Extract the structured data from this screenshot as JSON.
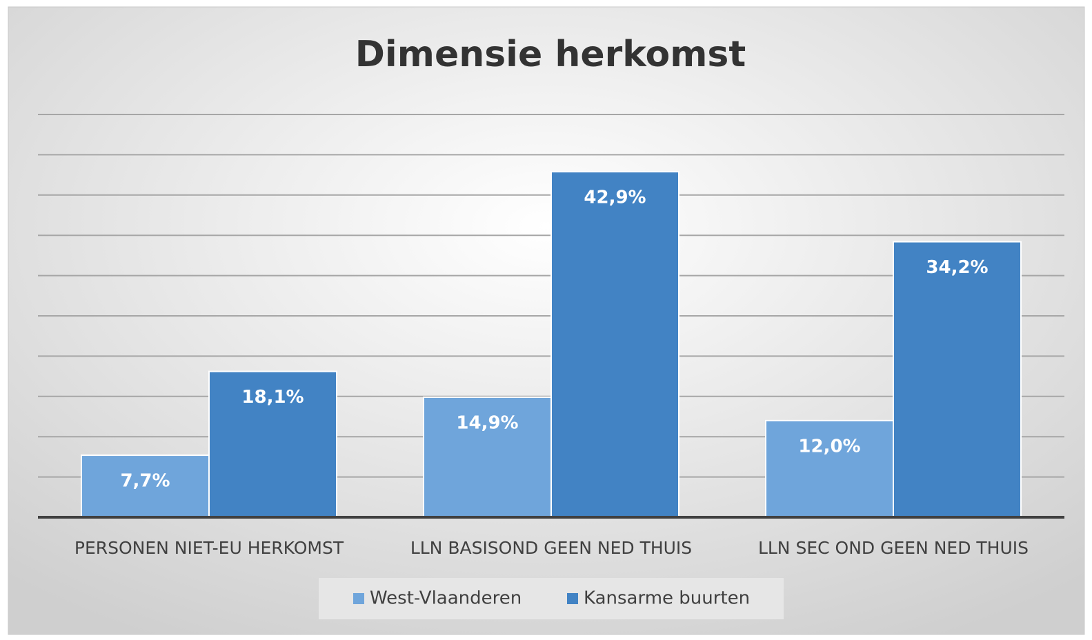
{
  "chart_data": {
    "type": "bar",
    "title": "Dimensie herkomst",
    "categories": [
      "PERSONEN NIET-EU HERKOMST",
      "LLN BASISOND GEEN NED THUIS",
      "LLN SEC OND GEEN NED THUIS"
    ],
    "series": [
      {
        "name": "West-Vlaanderen",
        "color": "#6fa5db",
        "values": [
          7.7,
          14.9,
          12.0
        ],
        "value_labels": [
          "7,7%",
          "14,9%",
          "12,0%"
        ]
      },
      {
        "name": "Kansarme buurten",
        "color": "#4283c4",
        "values": [
          18.1,
          42.9,
          34.2
        ],
        "value_labels": [
          "18,1%",
          "42,9%",
          "34,2%"
        ]
      }
    ],
    "ylim": [
      0,
      50
    ],
    "yticks": [
      0,
      5,
      10,
      15,
      20,
      25,
      30,
      35,
      40,
      45,
      50
    ],
    "grid": true,
    "legend": "bottom"
  }
}
